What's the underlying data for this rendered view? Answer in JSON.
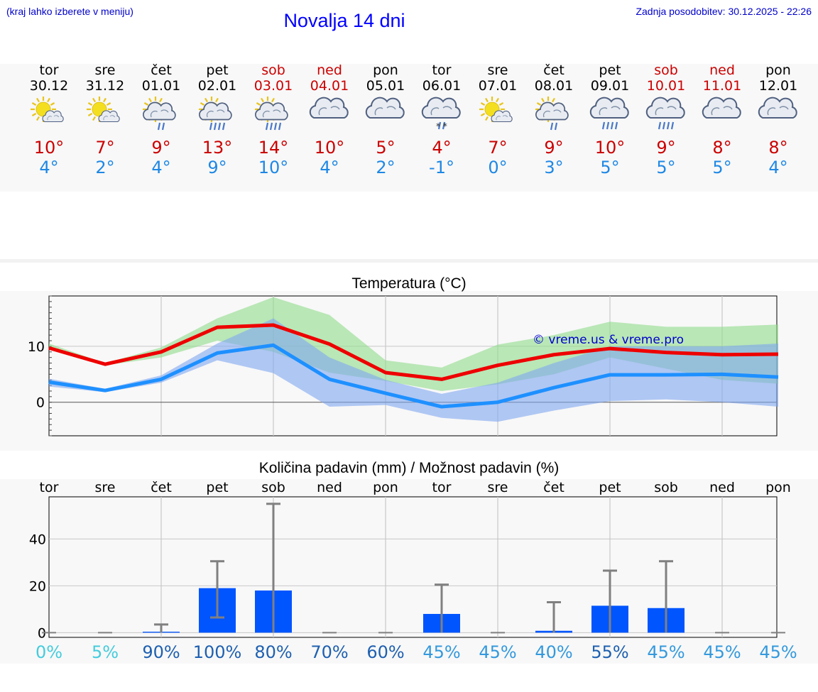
{
  "header": {
    "left": "(kraj lahko izberete v meniju)",
    "title": "Novalja 14 dni",
    "updated": "Zadnja posodobitev: 30.12.2025 - 22:26"
  },
  "days": [
    {
      "name": "tor",
      "date": "30.12",
      "weekend": false,
      "icon": "sun-cloud-icon",
      "tmax": "10°",
      "tmin": "4°"
    },
    {
      "name": "sre",
      "date": "31.12",
      "weekend": false,
      "icon": "sun-cloud-icon",
      "tmax": "7°",
      "tmin": "2°"
    },
    {
      "name": "čet",
      "date": "01.01",
      "weekend": false,
      "icon": "sun-cloud-rain-icon",
      "tmax": "9°",
      "tmin": "4°"
    },
    {
      "name": "pet",
      "date": "02.01",
      "weekend": false,
      "icon": "sun-cloud-heavy-rain-icon",
      "tmax": "13°",
      "tmin": "9°"
    },
    {
      "name": "sob",
      "date": "03.01",
      "weekend": true,
      "icon": "sun-cloud-heavy-rain-icon",
      "tmax": "14°",
      "tmin": "10°"
    },
    {
      "name": "ned",
      "date": "04.01",
      "weekend": true,
      "icon": "cloud-icon",
      "tmax": "10°",
      "tmin": "4°"
    },
    {
      "name": "pon",
      "date": "05.01",
      "weekend": false,
      "icon": "cloud-icon",
      "tmax": "5°",
      "tmin": "2°"
    },
    {
      "name": "tor",
      "date": "06.01",
      "weekend": false,
      "icon": "cloud-snow-rain-icon",
      "tmax": "4°",
      "tmin": "-1°"
    },
    {
      "name": "sre",
      "date": "07.01",
      "weekend": false,
      "icon": "sun-cloud-icon",
      "tmax": "7°",
      "tmin": "0°"
    },
    {
      "name": "čet",
      "date": "08.01",
      "weekend": false,
      "icon": "sun-cloud-rain-icon",
      "tmax": "9°",
      "tmin": "3°"
    },
    {
      "name": "pet",
      "date": "09.01",
      "weekend": false,
      "icon": "cloud-heavy-rain-icon",
      "tmax": "10°",
      "tmin": "5°"
    },
    {
      "name": "sob",
      "date": "10.01",
      "weekend": true,
      "icon": "cloud-heavy-rain-icon",
      "tmax": "9°",
      "tmin": "5°"
    },
    {
      "name": "ned",
      "date": "11.01",
      "weekend": true,
      "icon": "cloud-icon",
      "tmax": "8°",
      "tmin": "5°"
    },
    {
      "name": "pon",
      "date": "12.01",
      "weekend": false,
      "icon": "cloud-icon",
      "tmax": "8°",
      "tmin": "4°"
    }
  ],
  "colors": {
    "max_line": "#ee0000",
    "min_line": "#1e90ff",
    "max_band": "#8fdc8a",
    "min_band": "#7ea6f0",
    "bar": "#0055ff",
    "error": "#808080",
    "watermark": "#0000cc"
  },
  "chart_data": [
    {
      "type": "line",
      "title": "Temperatura (°C)",
      "watermark": "© vreme.us & vreme.pro",
      "ylim": [
        -6,
        19
      ],
      "yticks": [
        0,
        10
      ],
      "series": [
        {
          "name": "max",
          "values": [
            9.7,
            6.8,
            9.0,
            13.4,
            13.8,
            10.4,
            5.3,
            4.1,
            6.6,
            8.5,
            9.6,
            8.9,
            8.5,
            8.6
          ],
          "band_low": [
            9.5,
            6.6,
            8.0,
            11.0,
            9.0,
            5.3,
            3.8,
            2.0,
            3.2,
            5.0,
            8.0,
            6.0,
            4.0,
            3.3
          ],
          "band_high": [
            10.5,
            7.0,
            9.8,
            15.0,
            18.8,
            15.6,
            7.5,
            6.2,
            10.3,
            12.0,
            14.4,
            13.5,
            13.5,
            13.9
          ]
        },
        {
          "name": "min",
          "values": [
            3.6,
            2.1,
            4.1,
            8.8,
            10.2,
            4.1,
            1.6,
            -0.8,
            0.0,
            2.6,
            4.9,
            4.9,
            5.0,
            4.5
          ],
          "band_low": [
            2.8,
            1.8,
            3.5,
            7.5,
            5.2,
            -0.8,
            -0.5,
            -2.8,
            -3.5,
            -1.5,
            0.2,
            0.5,
            0.0,
            -0.8
          ],
          "band_high": [
            4.2,
            2.4,
            4.8,
            10.5,
            15.0,
            8.0,
            4.0,
            1.5,
            3.5,
            7.0,
            10.0,
            10.0,
            10.0,
            10.5
          ]
        }
      ]
    },
    {
      "type": "bar",
      "title": "Količina padavin (mm) / Možnost padavin (%)",
      "categories": [
        "tor",
        "sre",
        "čet",
        "pet",
        "sob",
        "ned",
        "pon",
        "tor",
        "sre",
        "čet",
        "pet",
        "sob",
        "ned",
        "pon"
      ],
      "values": [
        0,
        0,
        0.4,
        19.0,
        18.0,
        0,
        0,
        8.0,
        0,
        0.8,
        11.5,
        10.5,
        0,
        0
      ],
      "error_low": [
        0,
        0,
        0,
        6.5,
        0,
        0,
        0,
        0,
        0,
        0,
        0,
        0,
        0,
        0
      ],
      "error_high": [
        0,
        0,
        3.5,
        30.5,
        55.0,
        0,
        0,
        20.5,
        0,
        13.0,
        26.5,
        30.5,
        0,
        0
      ],
      "ylim": [
        -2,
        58
      ],
      "yticks": [
        0,
        20,
        40
      ],
      "probabilities": [
        "0%",
        "5%",
        "90%",
        "100%",
        "80%",
        "70%",
        "60%",
        "45%",
        "45%",
        "40%",
        "55%",
        "45%",
        "45%",
        "45%"
      ],
      "probability_colors": [
        "#44ccdd",
        "#44ccdd",
        "#1e60b0",
        "#1e60b0",
        "#1e60b0",
        "#1e60b0",
        "#1e60b0",
        "#3399dd",
        "#3399dd",
        "#3399dd",
        "#1e60b0",
        "#3399dd",
        "#3399dd",
        "#3399dd"
      ]
    }
  ]
}
